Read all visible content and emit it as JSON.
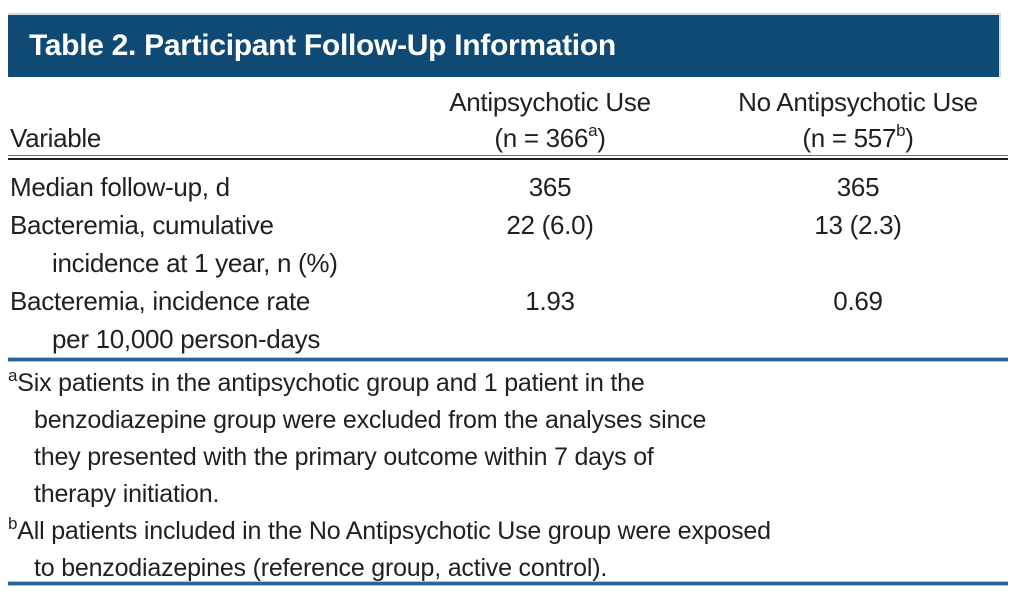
{
  "title": "Table 2. Participant Follow-Up Information",
  "colors": {
    "header_bg": "#0f4a75",
    "rule_blue": "#2a6598",
    "rule_dark": "#1f1c1d",
    "text": "#231f20"
  },
  "columns": {
    "variable": {
      "label": "Variable"
    },
    "col1": {
      "line1": "Antipsychotic Use",
      "n_prefix": "(n = 366",
      "sup": "a",
      "n_suffix": ")"
    },
    "col2": {
      "line1": "No Antipsychotic Use",
      "n_prefix": "(n = 557",
      "sup": "b",
      "n_suffix": ")"
    }
  },
  "rows": [
    {
      "label1": "Median follow-up, d",
      "v1": "365",
      "v2": "365"
    },
    {
      "label1": "Bacteremia, cumulative",
      "label2": "incidence at 1 year, n (%)",
      "v1": "22 (6.0)",
      "v2": "13 (2.3)"
    },
    {
      "label1": "Bacteremia, incidence rate",
      "label2": "per 10,000 person-days",
      "v1": "1.93",
      "v2": "0.69"
    }
  ],
  "footnotes": [
    {
      "sup": "a",
      "lines": [
        "Six patients in the antipsychotic group and 1 patient in the",
        "benzodiazepine group were excluded from the analyses since",
        "they presented with the primary outcome within 7 days of",
        "therapy initiation."
      ]
    },
    {
      "sup": "b",
      "lines": [
        "All patients included in the No Antipsychotic Use group were exposed",
        "to benzodiazepines (reference group, active control)."
      ]
    }
  ]
}
